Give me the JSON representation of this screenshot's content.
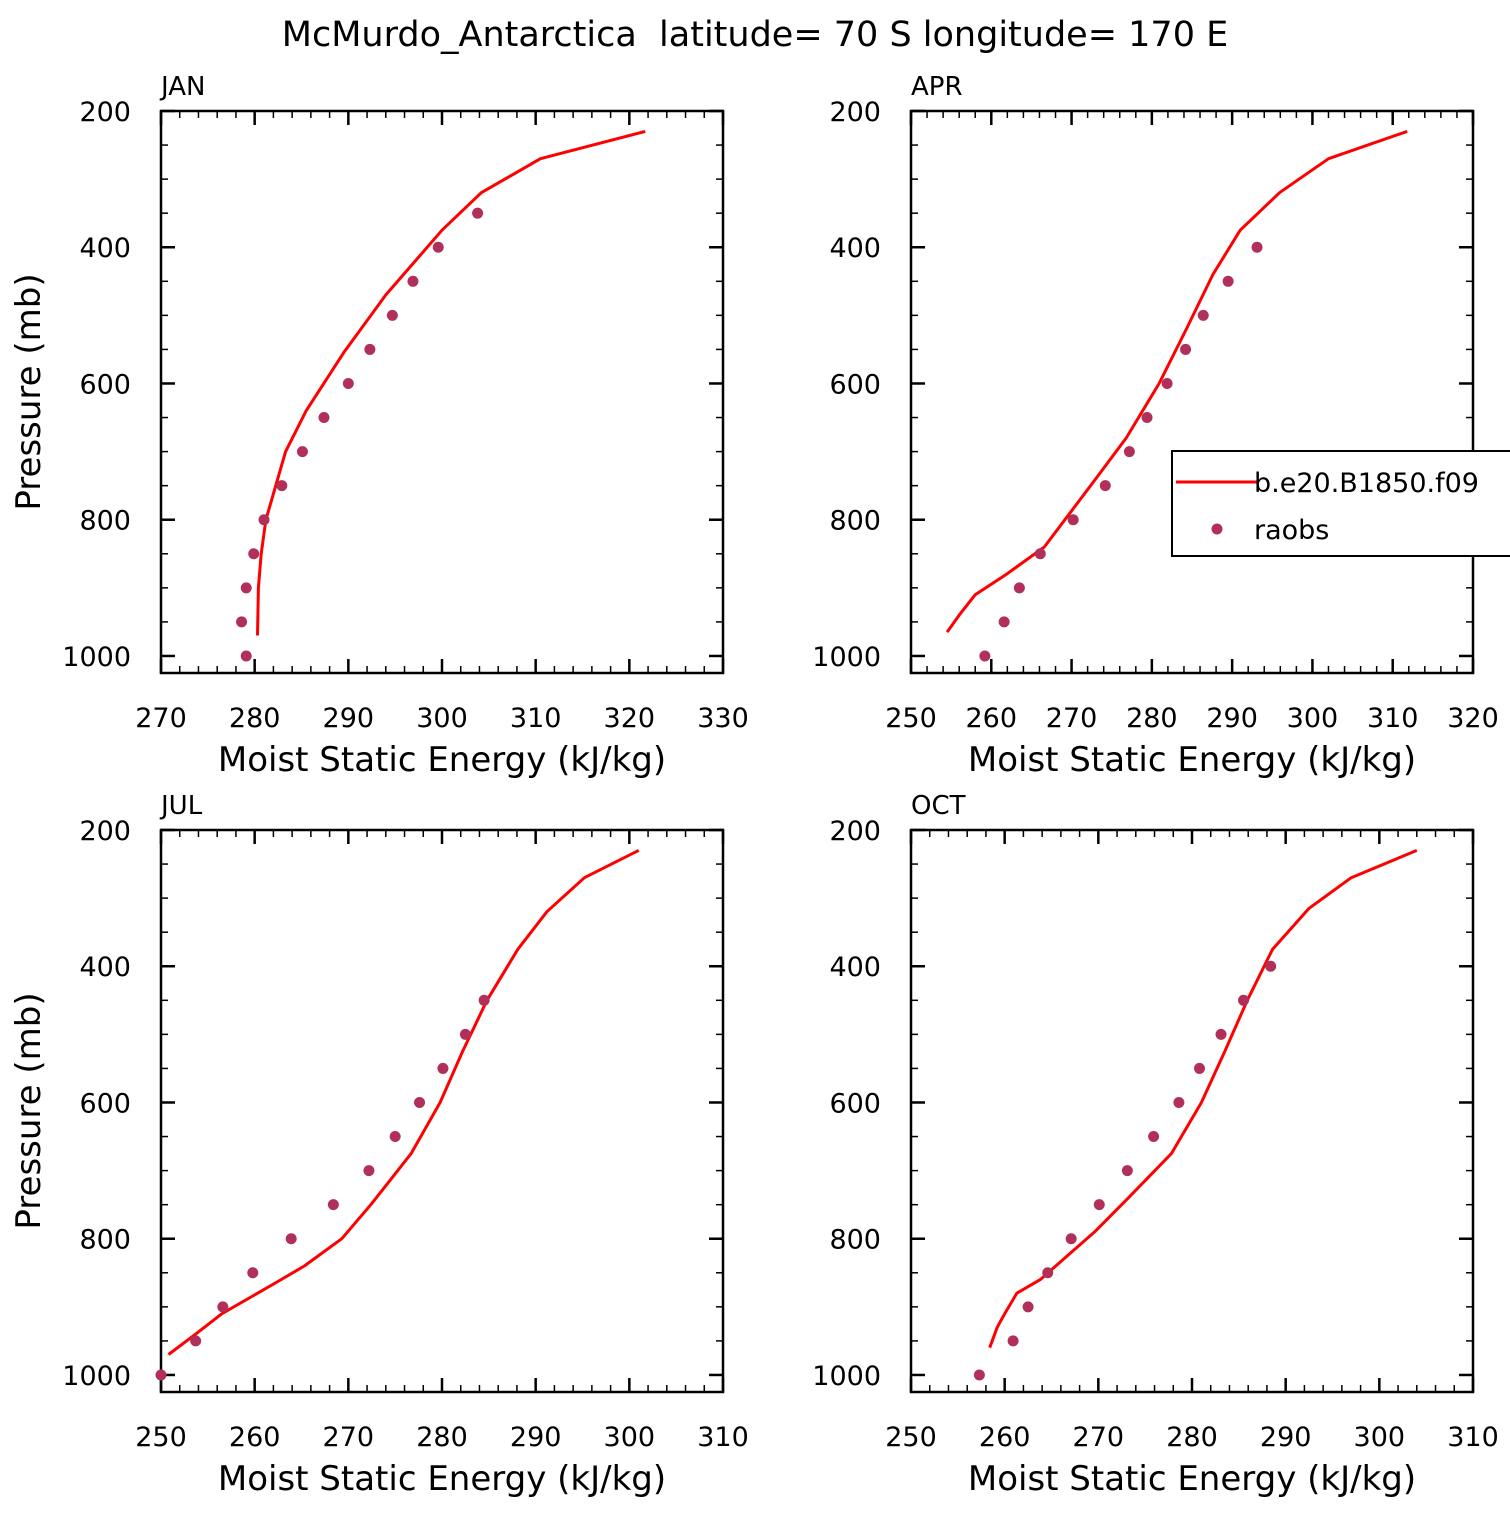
{
  "figure": {
    "title": "McMurdo_Antarctica  latitude= 70 S longitude= 170 E"
  },
  "colors": {
    "model_line": "#ff0000",
    "obs_marker": "#b0305a",
    "axis": "#000000"
  },
  "legend": {
    "placement": "right, inside APR panel, clipped at figure edge",
    "items": [
      {
        "label": "b.e20.B1850.f09",
        "kind": "line"
      },
      {
        "label": "raobs",
        "kind": "marker"
      }
    ]
  },
  "chart_data": [
    {
      "type": "line",
      "panel_title": "JAN",
      "xlabel": "Moist Static Energy (kJ/kg)",
      "ylabel": "Pressure (mb)",
      "xlim": [
        270,
        330
      ],
      "ylim": [
        1025,
        200
      ],
      "xticks": [
        270,
        280,
        290,
        300,
        310,
        320,
        330
      ],
      "yticks": [
        200,
        400,
        600,
        800,
        1000
      ],
      "series": [
        {
          "name": "b.e20.B1850.f09",
          "kind": "line",
          "x": [
            321.7,
            310.5,
            304.2,
            300.0,
            294.0,
            289.5,
            285.5,
            283.3,
            281.2,
            280.7,
            280.4,
            280.3
          ],
          "y": [
            230,
            270,
            320,
            375,
            470,
            555,
            640,
            700,
            800,
            850,
            900,
            970
          ]
        },
        {
          "name": "raobs",
          "kind": "marker",
          "x": [
            303.8,
            299.6,
            296.9,
            294.7,
            292.3,
            290.0,
            287.4,
            285.1,
            282.9,
            281.0,
            279.9,
            279.1,
            278.6,
            279.1
          ],
          "y": [
            350,
            400,
            450,
            500,
            550,
            600,
            650,
            700,
            750,
            800,
            850,
            900,
            950,
            1000
          ]
        }
      ]
    },
    {
      "type": "line",
      "panel_title": "APR",
      "xlabel": "Moist Static Energy (kJ/kg)",
      "ylabel": "",
      "xlim": [
        250,
        320
      ],
      "ylim": [
        1025,
        200
      ],
      "xticks": [
        250,
        260,
        270,
        280,
        290,
        300,
        310,
        320
      ],
      "yticks": [
        200,
        400,
        600,
        800,
        1000
      ],
      "series": [
        {
          "name": "b.e20.B1850.f09",
          "kind": "line",
          "x": [
            311.8,
            302.0,
            295.9,
            291.0,
            287.6,
            284.3,
            280.9,
            276.8,
            273.0,
            266.6,
            261.9,
            258.0,
            256.0,
            254.5
          ],
          "y": [
            230,
            270,
            320,
            375,
            440,
            520,
            600,
            680,
            740,
            840,
            880,
            910,
            940,
            965
          ]
        },
        {
          "name": "raobs",
          "kind": "marker",
          "x": [
            293.1,
            289.5,
            286.4,
            284.2,
            281.9,
            279.4,
            277.2,
            274.2,
            270.2,
            266.1,
            263.5,
            261.6,
            259.2
          ],
          "y": [
            400,
            450,
            500,
            550,
            600,
            650,
            700,
            750,
            800,
            850,
            900,
            950,
            1000
          ]
        }
      ]
    },
    {
      "type": "line",
      "panel_title": "JUL",
      "xlabel": "Moist Static Energy (kJ/kg)",
      "ylabel": "Pressure (mb)",
      "xlim": [
        250,
        310
      ],
      "ylim": [
        1025,
        200
      ],
      "xticks": [
        250,
        260,
        270,
        280,
        290,
        300,
        310
      ],
      "yticks": [
        200,
        400,
        600,
        800,
        1000
      ],
      "series": [
        {
          "name": "b.e20.B1850.f09",
          "kind": "line",
          "x": [
            301.0,
            295.2,
            291.2,
            288.1,
            284.8,
            282.2,
            279.8,
            276.7,
            272.4,
            269.3,
            265.3,
            262.2,
            256.5,
            253.7,
            250.8
          ],
          "y": [
            230,
            270,
            320,
            375,
            450,
            525,
            600,
            675,
            750,
            800,
            840,
            865,
            910,
            940,
            970
          ]
        },
        {
          "name": "raobs",
          "kind": "marker",
          "x": [
            284.5,
            282.5,
            280.1,
            277.6,
            275.0,
            272.2,
            268.4,
            263.9,
            259.8,
            256.6,
            253.7,
            250.0
          ],
          "y": [
            450,
            500,
            550,
            600,
            650,
            700,
            750,
            800,
            850,
            900,
            950,
            1000
          ]
        }
      ]
    },
    {
      "type": "line",
      "panel_title": "OCT",
      "xlabel": "Moist Static Energy (kJ/kg)",
      "ylabel": "",
      "xlim": [
        250,
        310
      ],
      "ylim": [
        1025,
        200
      ],
      "xticks": [
        250,
        260,
        270,
        280,
        290,
        300,
        310
      ],
      "yticks": [
        200,
        400,
        600,
        800,
        1000
      ],
      "series": [
        {
          "name": "b.e20.B1850.f09",
          "kind": "line",
          "x": [
            304.0,
            297.0,
            292.5,
            288.6,
            285.9,
            283.5,
            281.0,
            277.8,
            273.2,
            269.6,
            266.7,
            263.8,
            261.3,
            260.0,
            259.2,
            258.4
          ],
          "y": [
            230,
            270,
            315,
            375,
            450,
            525,
            600,
            675,
            740,
            790,
            825,
            860,
            880,
            910,
            930,
            960
          ]
        },
        {
          "name": "raobs",
          "kind": "marker",
          "x": [
            288.4,
            285.5,
            283.1,
            280.8,
            278.6,
            275.9,
            273.1,
            270.1,
            267.1,
            264.6,
            262.5,
            260.9,
            257.3
          ],
          "y": [
            400,
            450,
            500,
            550,
            600,
            650,
            700,
            750,
            800,
            850,
            900,
            950,
            1000
          ]
        }
      ]
    }
  ]
}
